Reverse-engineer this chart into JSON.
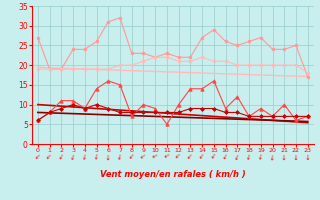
{
  "x": [
    0,
    1,
    2,
    3,
    4,
    5,
    6,
    7,
    8,
    9,
    10,
    11,
    12,
    13,
    14,
    15,
    16,
    17,
    18,
    19,
    20,
    21,
    22,
    23
  ],
  "series": [
    {
      "name": "rafales_max",
      "color": "#ff9999",
      "lw": 0.8,
      "marker": "o",
      "ms": 2.0,
      "values": [
        27,
        19,
        19,
        24,
        24,
        26,
        31,
        32,
        23,
        23,
        22,
        23,
        22,
        22,
        27,
        29,
        26,
        25,
        26,
        27,
        24,
        24,
        25,
        17
      ]
    },
    {
      "name": "rafales_moy_upper",
      "color": "#ffbbbb",
      "lw": 0.8,
      "marker": "o",
      "ms": 2.0,
      "values": [
        19,
        19,
        19,
        19,
        19,
        19,
        19,
        20,
        20,
        21,
        22,
        22,
        21,
        21,
        22,
        21,
        21,
        20,
        20,
        20,
        20,
        20,
        20,
        18
      ]
    },
    {
      "name": "rafales_trend",
      "color": "#ffbbbb",
      "lw": 1.0,
      "marker": null,
      "ms": 0,
      "values": [
        19.5,
        19.3,
        19.2,
        19.1,
        19.0,
        18.9,
        18.8,
        18.7,
        18.6,
        18.5,
        18.4,
        18.3,
        18.2,
        18.1,
        18.0,
        17.9,
        17.8,
        17.7,
        17.6,
        17.5,
        17.4,
        17.3,
        17.2,
        17.1
      ]
    },
    {
      "name": "vent_max",
      "color": "#ff4444",
      "lw": 0.8,
      "marker": "^",
      "ms": 2.5,
      "values": [
        6,
        8,
        11,
        11,
        9,
        14,
        16,
        15,
        7,
        10,
        9,
        5,
        10,
        14,
        14,
        16,
        9,
        12,
        7,
        9,
        7,
        10,
        6,
        7
      ]
    },
    {
      "name": "vent_moy",
      "color": "#cc0000",
      "lw": 0.8,
      "marker": "D",
      "ms": 2.0,
      "values": [
        6,
        8,
        9,
        10,
        9,
        10,
        9,
        8,
        8,
        8,
        8,
        8,
        8,
        9,
        9,
        9,
        8,
        8,
        7,
        7,
        7,
        7,
        7,
        7
      ]
    },
    {
      "name": "vent_trend_red",
      "color": "#cc0000",
      "lw": 1.2,
      "marker": null,
      "ms": 0,
      "values": [
        10.0,
        9.8,
        9.6,
        9.4,
        9.2,
        9.0,
        8.8,
        8.6,
        8.4,
        8.2,
        8.0,
        7.8,
        7.6,
        7.4,
        7.2,
        7.0,
        6.8,
        6.6,
        6.4,
        6.2,
        6.0,
        5.8,
        5.6,
        5.4
      ]
    },
    {
      "name": "vent_trend_dark",
      "color": "#880000",
      "lw": 1.2,
      "marker": null,
      "ms": 0,
      "values": [
        8.0,
        7.9,
        7.8,
        7.7,
        7.6,
        7.5,
        7.4,
        7.3,
        7.2,
        7.1,
        7.0,
        6.9,
        6.8,
        6.7,
        6.6,
        6.5,
        6.4,
        6.3,
        6.2,
        6.1,
        6.0,
        5.9,
        5.8,
        5.7
      ]
    }
  ],
  "xlabel": "Vent moyen/en rafales ( km/h )",
  "xlim": [
    -0.5,
    23.5
  ],
  "ylim": [
    0,
    35
  ],
  "yticks": [
    0,
    5,
    10,
    15,
    20,
    25,
    30,
    35
  ],
  "xticks": [
    0,
    1,
    2,
    3,
    4,
    5,
    6,
    7,
    8,
    9,
    10,
    11,
    12,
    13,
    14,
    15,
    16,
    17,
    18,
    19,
    20,
    21,
    22,
    23
  ],
  "bg_color": "#c8eeed",
  "grid_color": "#99cccc",
  "tick_color": "#ff0000",
  "xlabel_color": "#ff0000",
  "arrow_color": "#ff0000",
  "arrow_rotations": [
    225,
    225,
    210,
    200,
    195,
    190,
    185,
    195,
    220,
    235,
    245,
    240,
    228,
    222,
    218,
    215,
    208,
    202,
    196,
    193,
    188,
    183,
    183,
    180
  ]
}
